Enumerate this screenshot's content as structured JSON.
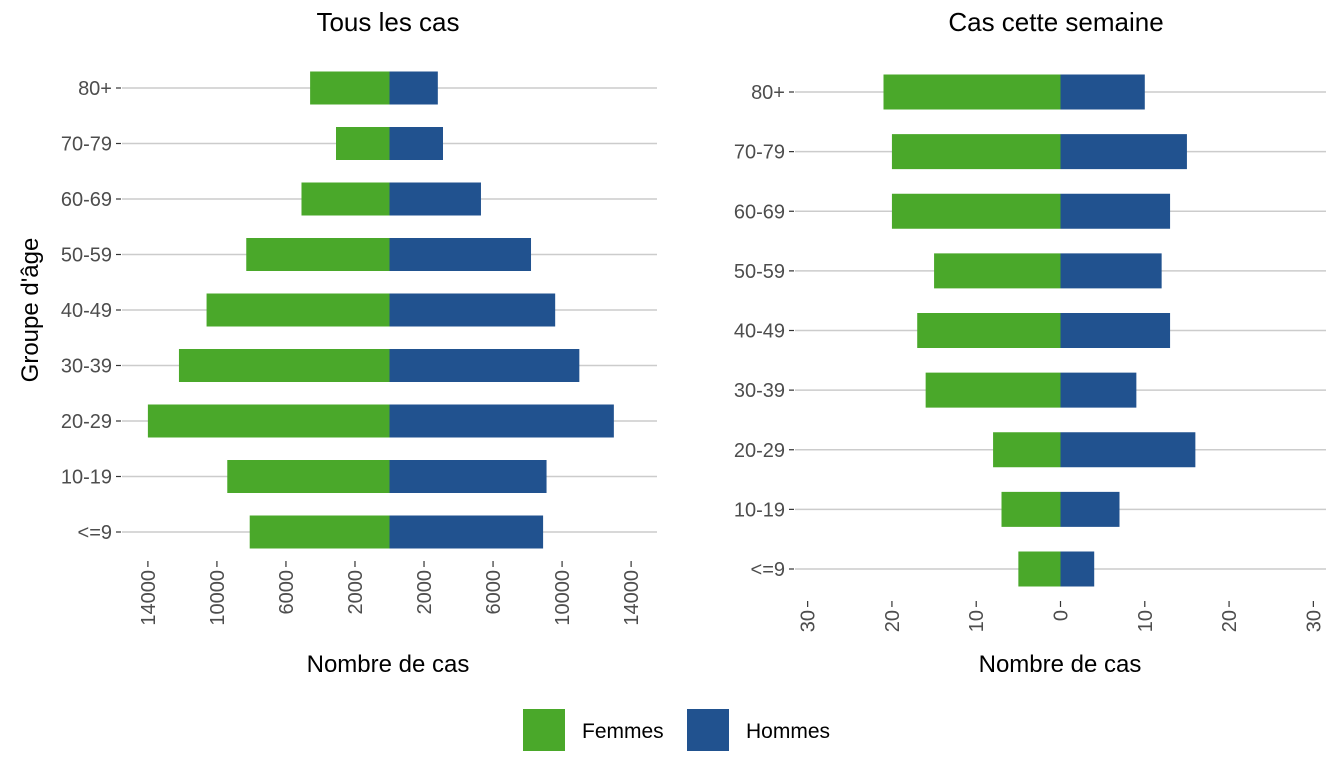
{
  "chart_data": [
    {
      "type": "bar",
      "orientation": "horizontal",
      "layout": "population-pyramid",
      "title": "Tous les cas",
      "xlabel": "Nombre de cas",
      "ylabel": "Groupe d'âge",
      "categories": [
        "<=9",
        "10-19",
        "20-29",
        "30-39",
        "40-49",
        "50-59",
        "60-69",
        "70-79",
        "80+"
      ],
      "series": [
        {
          "name": "Femmes",
          "color": "#4aa82a",
          "values": [
            8100,
            9400,
            14000,
            12200,
            10600,
            8300,
            5100,
            3100,
            4600
          ]
        },
        {
          "name": "Hommes",
          "color": "#21528f",
          "values": [
            8900,
            9100,
            13000,
            11000,
            9600,
            8200,
            5300,
            3100,
            2800
          ]
        }
      ],
      "xlim": [
        -15500,
        15500
      ],
      "xticks": [
        -14000,
        -10000,
        -6000,
        -2000,
        2000,
        6000,
        10000,
        14000
      ],
      "xtick_labels": [
        "14000",
        "10000",
        "6000",
        "2000",
        "2000",
        "6000",
        "10000",
        "14000"
      ],
      "grid": "horizontal"
    },
    {
      "type": "bar",
      "orientation": "horizontal",
      "layout": "population-pyramid",
      "title": "Cas cette semaine",
      "xlabel": "Nombre de cas",
      "ylabel": "",
      "categories": [
        "<=9",
        "10-19",
        "20-29",
        "30-39",
        "40-49",
        "50-59",
        "60-69",
        "70-79",
        "80+"
      ],
      "series": [
        {
          "name": "Femmes",
          "color": "#4aa82a",
          "values": [
            5,
            7,
            8,
            16,
            17,
            15,
            20,
            20,
            21
          ]
        },
        {
          "name": "Hommes",
          "color": "#21528f",
          "values": [
            4,
            7,
            16,
            9,
            13,
            12,
            13,
            15,
            10
          ]
        }
      ],
      "xlim": [
        -31.5,
        31.5
      ],
      "xticks": [
        -30,
        -20,
        -10,
        0,
        10,
        20,
        30
      ],
      "xtick_labels": [
        "30",
        "20",
        "10",
        "0",
        "10",
        "20",
        "30"
      ],
      "grid": "horizontal"
    }
  ],
  "legend": {
    "position": "bottom",
    "items": [
      {
        "label": "Femmes",
        "color": "#4aa82a"
      },
      {
        "label": "Hommes",
        "color": "#21528f"
      }
    ]
  }
}
